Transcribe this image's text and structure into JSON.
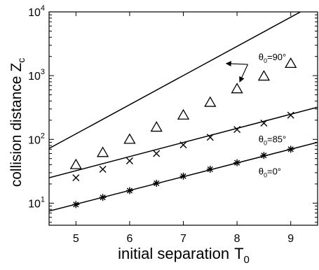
{
  "chart_data": {
    "type": "scatter",
    "title": "",
    "xlabel": "initial separation",
    "xlabel_sub": "0",
    "xlabel_symbol": "T",
    "ylabel": "collision distance",
    "ylabel_symbol": "Z",
    "ylabel_sub": "c",
    "x_scale": "linear",
    "y_scale": "log",
    "xlim": [
      4.5,
      9.5
    ],
    "ylim": [
      4.5,
      10000
    ],
    "x_ticks": [
      5,
      6,
      7,
      8,
      9
    ],
    "y_ticks": [
      {
        "base": "10",
        "exp": "1",
        "value": 10
      },
      {
        "base": "10",
        "exp": "2",
        "value": 100
      },
      {
        "base": "10",
        "exp": "3",
        "value": 1000
      },
      {
        "base": "10",
        "exp": "4",
        "value": 10000
      }
    ],
    "grid": false,
    "lines": [
      {
        "x": [
          4.5,
          9.5
        ],
        "y": [
          72,
          14000
        ]
      },
      {
        "x": [
          4.5,
          9.5
        ],
        "y": [
          25,
          320
        ]
      },
      {
        "x": [
          4.5,
          9.5
        ],
        "y": [
          7.5,
          90
        ]
      }
    ],
    "series": [
      {
        "marker": "triangle",
        "x": [
          5,
          5.5,
          6,
          6.5,
          7,
          7.5,
          8,
          8.5,
          9
        ],
        "y": [
          40,
          62,
          100,
          155,
          240,
          380,
          620,
          980,
          1550
        ]
      },
      {
        "marker": "x",
        "x": [
          5,
          5.5,
          6,
          6.5,
          7,
          7.5,
          8,
          8.5,
          9
        ],
        "y": [
          25,
          34,
          46,
          60,
          82,
          108,
          143,
          180,
          240
        ]
      },
      {
        "marker": "asterisk",
        "x": [
          5,
          5.5,
          6,
          6.5,
          7,
          7.5,
          8,
          8.5,
          9
        ],
        "y": [
          9.5,
          12.3,
          15.7,
          20.5,
          26.5,
          34,
          43,
          56,
          70
        ]
      }
    ],
    "annotations": [
      {
        "sym": "θ",
        "sub": "0",
        "text": "=90°",
        "x": 8.4,
        "y": 1750
      },
      {
        "sym": "θ",
        "sub": "0",
        "text": "=85°",
        "x": 8.4,
        "y": 90
      },
      {
        "sym": "θ",
        "sub": "0",
        "text": "=0°",
        "x": 8.4,
        "y": 28
      }
    ],
    "arrow": {
      "from": [
        8.2,
        1500
      ],
      "to_list": [
        [
          7.8,
          1550
        ],
        [
          8.05,
          800
        ]
      ]
    }
  }
}
